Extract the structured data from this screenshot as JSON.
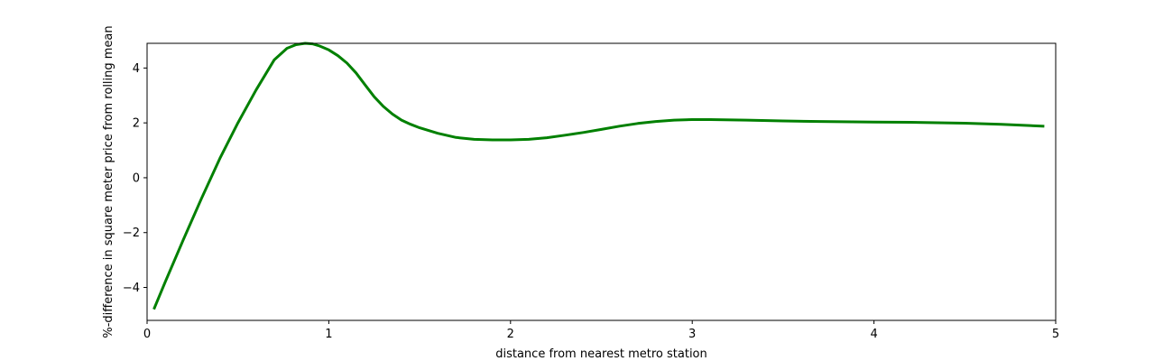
{
  "chart_data": {
    "type": "line",
    "title": "",
    "xlabel": "distance from nearest metro station",
    "ylabel": "%-difference in square meter price from rolling mean",
    "xlim": [
      0,
      5
    ],
    "ylim": [
      -5.2,
      4.9
    ],
    "xticks": [
      0,
      1,
      2,
      3,
      4,
      5
    ],
    "yticks": [
      -4,
      -2,
      0,
      2,
      4
    ],
    "xtick_labels": [
      "0",
      "1",
      "2",
      "3",
      "4",
      "5"
    ],
    "ytick_labels": [
      "−4",
      "−2",
      "0",
      "2",
      "4"
    ],
    "grid": false,
    "legend": "none",
    "series": [
      {
        "color": "#008000",
        "x": [
          0.04,
          0.1,
          0.2,
          0.3,
          0.4,
          0.5,
          0.6,
          0.7,
          0.77,
          0.82,
          0.87,
          0.91,
          0.95,
          1.0,
          1.05,
          1.1,
          1.15,
          1.2,
          1.25,
          1.3,
          1.35,
          1.4,
          1.45,
          1.5,
          1.6,
          1.7,
          1.8,
          1.9,
          2.0,
          2.1,
          2.2,
          2.3,
          2.4,
          2.5,
          2.6,
          2.7,
          2.8,
          2.9,
          3.0,
          3.1,
          3.3,
          3.5,
          3.7,
          4.0,
          4.2,
          4.5,
          4.7,
          4.93
        ],
        "y": [
          -4.75,
          -3.8,
          -2.25,
          -0.75,
          0.7,
          2.0,
          3.2,
          4.3,
          4.72,
          4.85,
          4.9,
          4.88,
          4.8,
          4.66,
          4.45,
          4.18,
          3.82,
          3.38,
          2.95,
          2.6,
          2.32,
          2.1,
          1.95,
          1.82,
          1.62,
          1.47,
          1.4,
          1.38,
          1.38,
          1.4,
          1.46,
          1.55,
          1.65,
          1.76,
          1.88,
          1.98,
          2.05,
          2.1,
          2.12,
          2.12,
          2.1,
          2.07,
          2.05,
          2.03,
          2.02,
          1.99,
          1.95,
          1.88
        ]
      }
    ]
  }
}
